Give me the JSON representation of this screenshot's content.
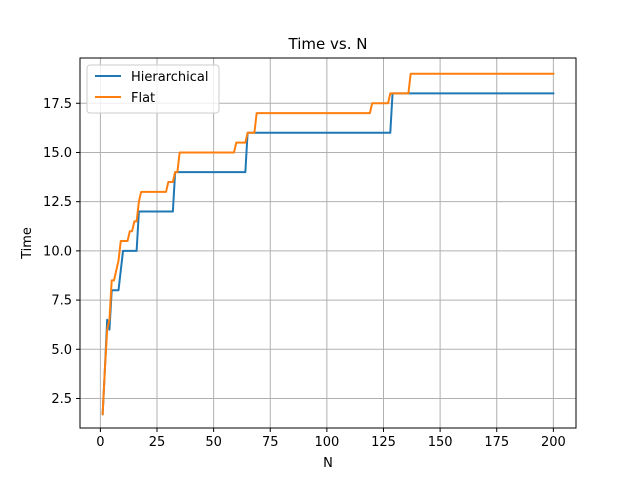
{
  "chart_data": {
    "type": "line",
    "title": "Time vs. N",
    "xlabel": "N",
    "ylabel": "Time",
    "xlim": [
      -9,
      210
    ],
    "ylim": [
      1.0,
      19.8
    ],
    "xticks": [
      0,
      25,
      50,
      75,
      100,
      125,
      150,
      175,
      200
    ],
    "yticks": [
      2.5,
      5.0,
      7.5,
      10.0,
      12.5,
      15.0,
      17.5
    ],
    "xtick_labels": [
      "0",
      "25",
      "50",
      "75",
      "100",
      "125",
      "150",
      "175",
      "200"
    ],
    "ytick_labels": [
      "2.5",
      "5.0",
      "7.5",
      "10.0",
      "12.5",
      "15.0",
      "17.5"
    ],
    "grid": true,
    "legend_position": "upper-left",
    "series": [
      {
        "name": "Hierarchical",
        "color": "#1f77b4",
        "x": [
          1,
          2,
          3,
          4,
          5,
          6,
          7,
          8,
          9,
          10,
          16,
          17,
          32,
          33,
          64,
          65,
          128,
          129,
          200
        ],
        "y": [
          1.7,
          4,
          6.5,
          6,
          8,
          8,
          8,
          8,
          9,
          10,
          10,
          12,
          12,
          14,
          14,
          16,
          16,
          18,
          18
        ]
      },
      {
        "name": "Flat",
        "color": "#ff7f0e",
        "x": [
          1,
          2,
          3,
          4,
          5,
          6,
          7,
          8,
          9,
          10,
          11,
          12,
          13,
          14,
          15,
          16,
          17,
          18,
          29,
          30,
          31,
          32,
          33,
          34,
          35,
          59,
          60,
          64,
          65,
          68,
          69,
          119,
          120,
          127,
          128,
          136,
          137,
          200
        ],
        "y": [
          1.7,
          4,
          6,
          6.5,
          8.5,
          8.5,
          9,
          9.5,
          10.5,
          10.5,
          10.5,
          10.5,
          11,
          11,
          11.5,
          11.5,
          12.5,
          13,
          13,
          13.5,
          13.5,
          13.5,
          14,
          14,
          15,
          15,
          15.5,
          15.5,
          16,
          16,
          17,
          17,
          17.5,
          17.5,
          18,
          18,
          19,
          19
        ]
      }
    ]
  }
}
